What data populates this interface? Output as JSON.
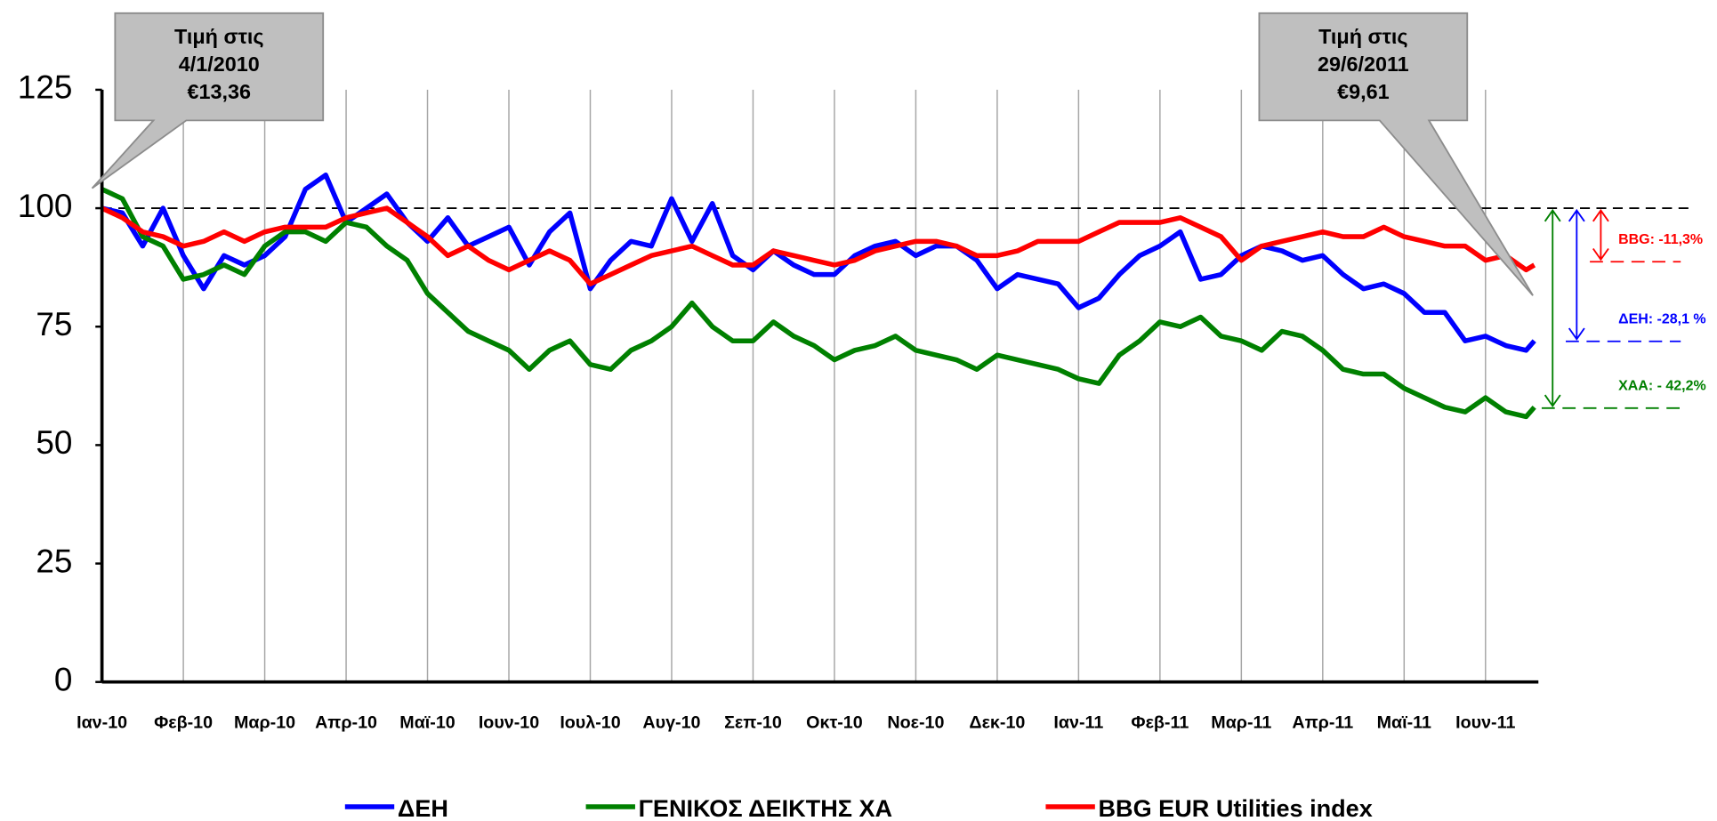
{
  "chart_data": {
    "type": "line",
    "xlim": [
      0,
      17.65
    ],
    "xticks": [
      {
        "value": 0,
        "label": "Ιαν-10"
      },
      {
        "value": 1,
        "label": "Φεβ-10"
      },
      {
        "value": 2,
        "label": "Μαρ-10"
      },
      {
        "value": 3,
        "label": "Απρ-10"
      },
      {
        "value": 4,
        "label": "Μαϊ-10"
      },
      {
        "value": 5,
        "label": "Ιουν-10"
      },
      {
        "value": 6,
        "label": "Ιουλ-10"
      },
      {
        "value": 7,
        "label": "Αυγ-10"
      },
      {
        "value": 8,
        "label": "Σεπ-10"
      },
      {
        "value": 9,
        "label": "Οκτ-10"
      },
      {
        "value": 10,
        "label": "Νοε-10"
      },
      {
        "value": 11,
        "label": "Δεκ-10"
      },
      {
        "value": 12,
        "label": "Ιαν-11"
      },
      {
        "value": 13,
        "label": "Φεβ-11"
      },
      {
        "value": 14,
        "label": "Μαρ-11"
      },
      {
        "value": 15,
        "label": "Απρ-11"
      },
      {
        "value": 16,
        "label": "Μαϊ-11"
      },
      {
        "value": 17,
        "label": "Ιουν-11"
      }
    ],
    "ylim": [
      0,
      125
    ],
    "yticks": [
      0,
      25,
      50,
      75,
      100,
      125
    ],
    "grid": true,
    "baseline": 100,
    "legend": "bottom",
    "x": [
      0,
      0.25,
      0.5,
      0.75,
      1,
      1.25,
      1.5,
      1.75,
      2,
      2.25,
      2.5,
      2.75,
      3,
      3.25,
      3.5,
      3.75,
      4,
      4.25,
      4.5,
      4.75,
      5,
      5.25,
      5.5,
      5.75,
      6,
      6.25,
      6.5,
      6.75,
      7,
      7.25,
      7.5,
      7.75,
      8,
      8.25,
      8.5,
      8.75,
      9,
      9.25,
      9.5,
      9.75,
      10,
      10.25,
      10.5,
      10.75,
      11,
      11.25,
      11.5,
      11.75,
      12,
      12.25,
      12.5,
      12.75,
      13,
      13.25,
      13.5,
      13.75,
      14,
      14.25,
      14.5,
      14.75,
      15,
      15.25,
      15.5,
      15.75,
      16,
      16.25,
      16.5,
      16.75,
      17,
      17.25,
      17.5,
      17.6
    ],
    "series": [
      {
        "name": "ΔΕΗ",
        "color": "#0000ff",
        "values": [
          100,
          99,
          92,
          100,
          90,
          83,
          90,
          88,
          90,
          94,
          104,
          107,
          97,
          100,
          103,
          97,
          93,
          98,
          92,
          94,
          96,
          88,
          95,
          99,
          83,
          89,
          93,
          92,
          102,
          93,
          101,
          90,
          87,
          91,
          88,
          86,
          86,
          90,
          92,
          93,
          90,
          92,
          92,
          89,
          83,
          86,
          85,
          84,
          79,
          81,
          86,
          90,
          92,
          95,
          85,
          86,
          90,
          92,
          91,
          89,
          90,
          86,
          83,
          84,
          82,
          78,
          78,
          72,
          73,
          71,
          70,
          72
        ]
      },
      {
        "name": "ΓΕΝΙΚΟΣ ΔΕΙΚΤΗΣ ΧΑ",
        "color": "#008000",
        "values": [
          104,
          102,
          94,
          92,
          85,
          86,
          88,
          86,
          92,
          95,
          95,
          93,
          97,
          96,
          92,
          89,
          82,
          78,
          74,
          72,
          70,
          66,
          70,
          72,
          67,
          66,
          70,
          72,
          75,
          80,
          75,
          72,
          72,
          76,
          73,
          71,
          68,
          70,
          71,
          73,
          70,
          69,
          68,
          66,
          69,
          68,
          67,
          66,
          64,
          63,
          69,
          72,
          76,
          75,
          77,
          73,
          72,
          70,
          74,
          73,
          70,
          66,
          65,
          65,
          62,
          60,
          58,
          57,
          60,
          57,
          56,
          58
        ]
      },
      {
        "name": "BBG EUR Utilities index",
        "color": "#ff0000",
        "values": [
          100,
          98,
          95,
          94,
          92,
          93,
          95,
          93,
          95,
          96,
          96,
          96,
          98,
          99,
          100,
          97,
          94,
          90,
          92,
          89,
          87,
          89,
          91,
          89,
          84,
          86,
          88,
          90,
          91,
          92,
          90,
          88,
          88,
          91,
          90,
          89,
          88,
          89,
          91,
          92,
          93,
          93,
          92,
          90,
          90,
          91,
          93,
          93,
          93,
          95,
          97,
          97,
          97,
          98,
          96,
          94,
          89,
          92,
          93,
          94,
          95,
          94,
          94,
          96,
          94,
          93,
          92,
          92,
          89,
          90,
          87,
          88
        ]
      }
    ],
    "callouts": [
      {
        "lines": [
          "Τιμή στις",
          "4/1/2010",
          "€13,36"
        ]
      },
      {
        "lines": [
          "Τιμή στις",
          "29/6/2011",
          "€9,61"
        ]
      }
    ],
    "annotations": [
      {
        "text": "BBG: -11,3%",
        "color": "#ff0000",
        "value": 88.7
      },
      {
        "text": "ΔΕΗ:  -28,1 %",
        "color": "#0000ff",
        "value": 71.9
      },
      {
        "text": "ΧΑΑ: - 42,2%",
        "color": "#008000",
        "value": 57.8
      }
    ]
  }
}
